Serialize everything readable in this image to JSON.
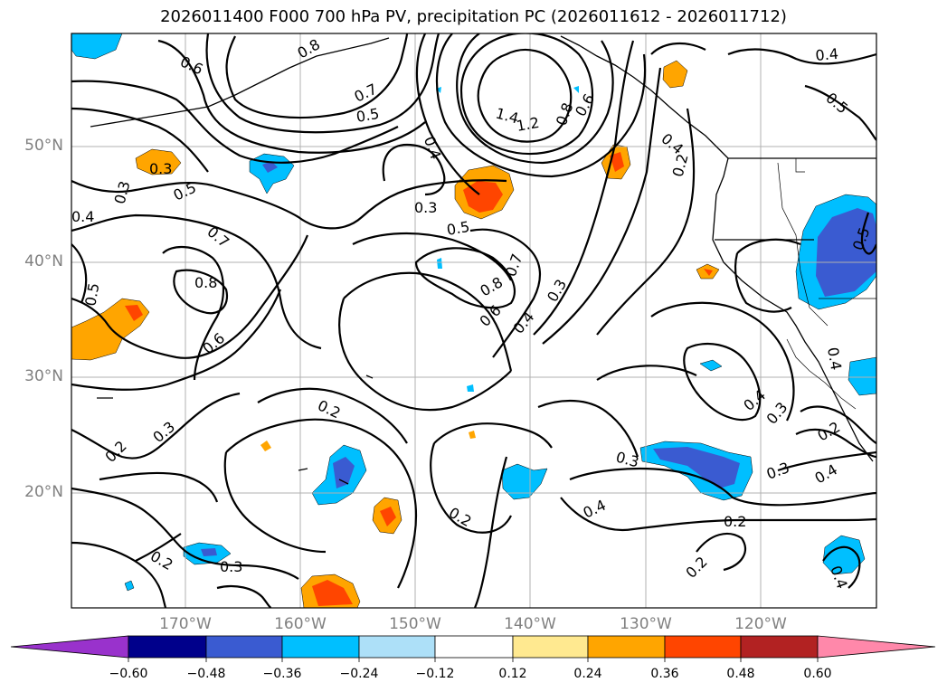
{
  "title": "2026011400 F000 700 hPa PV, precipitation PC (2026011612 - 2026011712)",
  "map": {
    "lat_labels": [
      "50°N",
      "40°N",
      "30°N",
      "20°N"
    ],
    "lon_labels": [
      "170°W",
      "160°W",
      "150°W",
      "140°W",
      "130°W",
      "120°W"
    ],
    "contour_labels": [
      "0.6",
      "0.8",
      "0.7",
      "0.5",
      "0.3",
      "0.5",
      "0.7",
      "0.8",
      "0.6",
      "0.5",
      "0.4",
      "0.3",
      "0.4",
      "0.3",
      "0.5",
      "0.8",
      "0.6",
      "0.7",
      "0.3",
      "0.4",
      "1.4",
      "1.2",
      "0.8",
      "0.6",
      "0.4",
      "0.2",
      "0.4",
      "0.5",
      "0.5",
      "0.2",
      "0.3",
      "0.2",
      "0.3",
      "0.2",
      "0.4",
      "0.2",
      "0.2",
      "0.3",
      "0.2",
      "0.4",
      "0.3",
      "0.2",
      "0.4",
      "0.3",
      "0.4",
      "0.4"
    ]
  },
  "colorbar": {
    "tick_labels": [
      "−0.60",
      "−0.48",
      "−0.36",
      "−0.24",
      "−0.12",
      "0.12",
      "0.24",
      "0.36",
      "0.48",
      "0.60"
    ],
    "colors": [
      "#9932cc",
      "#00008b",
      "#3a5bd1",
      "#00bfff",
      "#ade0f8",
      "#ffffff",
      "#ffe990",
      "#ffa500",
      "#ff4500",
      "#b22222",
      "#ff88aa"
    ]
  },
  "colors": {
    "negative_blue": "#00bfff",
    "positive_orange": "#ffa500"
  }
}
